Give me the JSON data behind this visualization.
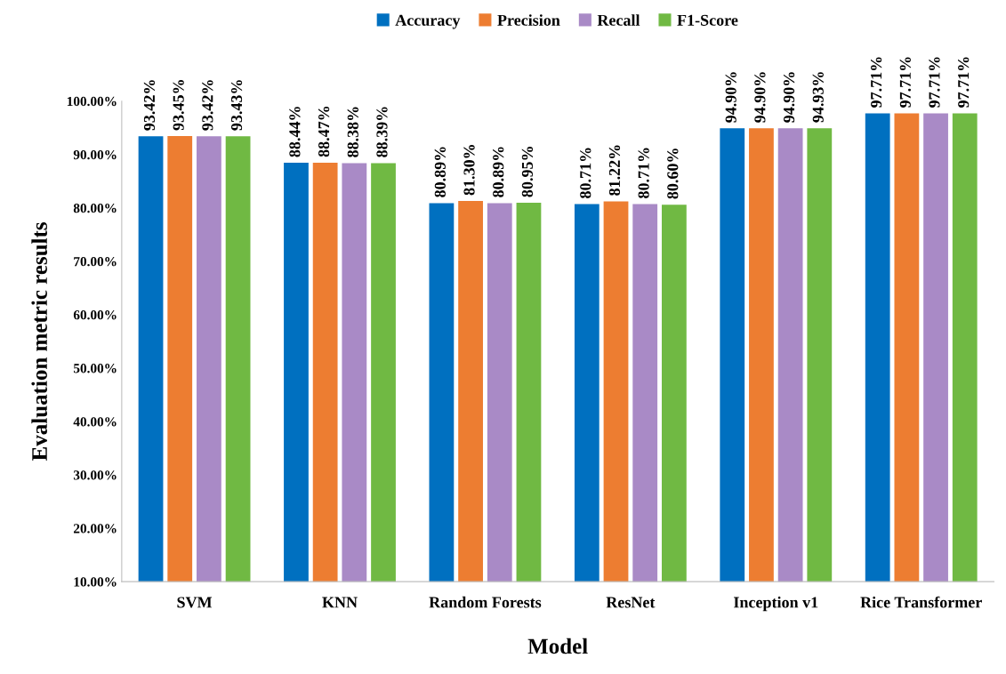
{
  "chart_data": {
    "type": "bar",
    "xlabel": "Model",
    "ylabel": "Evaluation metric results",
    "categories": [
      "SVM",
      "KNN",
      "Random Forests",
      "ResNet",
      "Inception v1",
      "Rice Transformer"
    ],
    "series": [
      {
        "name": "Accuracy",
        "color": "#0070c0",
        "values": [
          93.42,
          88.44,
          80.89,
          80.71,
          94.9,
          97.71
        ],
        "value_labels": [
          "93.42%",
          "88.44%",
          "80.89%",
          "80.71%",
          "94.90%",
          "97.71%"
        ]
      },
      {
        "name": "Precision",
        "color": "#ed7d31",
        "values": [
          93.45,
          88.47,
          81.3,
          81.22,
          94.9,
          97.71
        ],
        "value_labels": [
          "93.45%",
          "88.47%",
          "81.30%",
          "81.22%",
          "94.90%",
          "97.71%"
        ]
      },
      {
        "name": "Recall",
        "color": "#a98ac6",
        "values": [
          93.42,
          88.38,
          80.89,
          80.71,
          94.9,
          97.71
        ],
        "value_labels": [
          "93.42%",
          "88.38%",
          "80.89%",
          "80.71%",
          "94.90%",
          "97.71%"
        ]
      },
      {
        "name": "F1-Score",
        "color": "#70b943",
        "values": [
          93.43,
          88.39,
          80.95,
          80.6,
          94.93,
          97.71
        ],
        "value_labels": [
          "93.43%",
          "88.39%",
          "80.95%",
          "80.60%",
          "94.93%",
          "97.71%"
        ]
      }
    ],
    "ylim": [
      10,
      100
    ],
    "yticks": [
      {
        "value": 10,
        "label": "10.00%"
      },
      {
        "value": 20,
        "label": "20.00%"
      },
      {
        "value": 30,
        "label": "30.00%"
      },
      {
        "value": 40,
        "label": "40.00%"
      },
      {
        "value": 50,
        "label": "50.00%"
      },
      {
        "value": 60,
        "label": "60.00%"
      },
      {
        "value": 70,
        "label": "70.00%"
      },
      {
        "value": 80,
        "label": "80.00%"
      },
      {
        "value": 90,
        "label": "90.00%"
      },
      {
        "value": 100,
        "label": "100.00%"
      }
    ],
    "grid": false,
    "legend": "top"
  }
}
